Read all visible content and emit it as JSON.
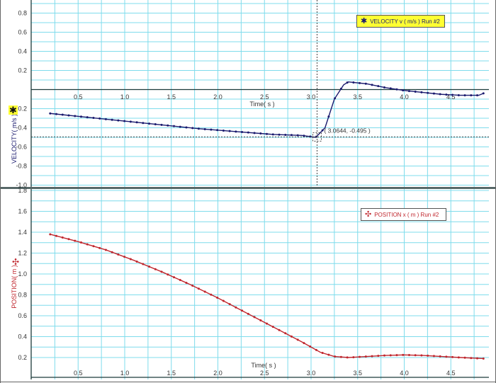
{
  "colors": {
    "velocity": "#1a1a6e",
    "position": "#c0262d",
    "grid": "#7fdcec",
    "axis": "#1c3a3a",
    "legend_highlight": "#ffff33"
  },
  "top_legend": {
    "glyph": "✱",
    "text": "VELOCITY v ( m/s ) Run #2"
  },
  "bottom_legend": {
    "glyph": "✣",
    "text": "POSITION x ( m ) Run #2"
  },
  "top_marker_glyph": "✱",
  "bottom_marker_glyph": "✣",
  "readout": "( 3.0644, -0.495 )",
  "chart_data": [
    {
      "type": "line",
      "x_axis_label": "Time( s )",
      "y_axis_label": "VELOCITY( m/s )",
      "xlim": [
        0,
        5
      ],
      "ylim": [
        -1.05,
        0.9
      ],
      "x_ticks": [
        0.5,
        1.0,
        1.5,
        2.0,
        2.5,
        3.0,
        3.5,
        4.0,
        4.5
      ],
      "x_tick_labels": [
        "0.5",
        "1.0",
        "1.5",
        "2.0",
        "2.5",
        "3.0",
        "3.5",
        "4.0",
        "4.5"
      ],
      "y_ticks": [
        0.8,
        0.6,
        0.4,
        0.2,
        -0.2,
        -0.4,
        -0.6,
        -0.8,
        -1.0
      ],
      "y_tick_labels": [
        "0.8",
        "0.6",
        "0.4",
        "0.2",
        "-0.2",
        "-0.4",
        "-0.6",
        "-0.8",
        "-1.0"
      ],
      "grid": true,
      "legend_position": "top-right",
      "cursor": {
        "x": 3.0644,
        "y": -0.495
      },
      "series": [
        {
          "name": "VELOCITY v ( m/s ) Run #2",
          "x": [
            0.2,
            0.6,
            1.0,
            1.4,
            1.8,
            2.2,
            2.6,
            2.9,
            3.05,
            3.15,
            3.25,
            3.35,
            3.4,
            3.6,
            3.8,
            4.0,
            4.2,
            4.4,
            4.6,
            4.8,
            4.85
          ],
          "y": [
            -0.25,
            -0.29,
            -0.33,
            -0.37,
            -0.41,
            -0.44,
            -0.47,
            -0.48,
            -0.5,
            -0.4,
            -0.1,
            0.05,
            0.08,
            0.06,
            0.02,
            -0.01,
            -0.03,
            -0.05,
            -0.06,
            -0.06,
            -0.04
          ]
        }
      ]
    },
    {
      "type": "line",
      "x_axis_label": "Time( s )",
      "y_axis_label": "POSITION( m )",
      "xlim": [
        0,
        5
      ],
      "ylim": [
        0.12,
        1.85
      ],
      "x_ticks": [
        0.5,
        1.0,
        1.5,
        2.0,
        2.5,
        3.0,
        3.5,
        4.0,
        4.5
      ],
      "x_tick_labels": [
        "0.5",
        "1.0",
        "1.5",
        "2.0",
        "2.5",
        "3.0",
        "3.5",
        "4.0",
        "4.5"
      ],
      "y_ticks": [
        1.8,
        1.6,
        1.4,
        1.2,
        1.0,
        0.8,
        0.6,
        0.4,
        0.2
      ],
      "y_tick_labels": [
        "1.8",
        "1.6",
        "1.4",
        "1.2",
        "1.0",
        "0.8",
        "0.6",
        "0.4",
        "0.2"
      ],
      "grid": true,
      "legend_position": "top-right",
      "series": [
        {
          "name": "POSITION x ( m ) Run #2",
          "x": [
            0.2,
            0.5,
            0.8,
            1.1,
            1.4,
            1.7,
            2.0,
            2.3,
            2.6,
            2.9,
            3.1,
            3.25,
            3.4,
            3.6,
            3.8,
            4.0,
            4.2,
            4.4,
            4.6,
            4.85
          ],
          "y": [
            1.38,
            1.31,
            1.23,
            1.13,
            1.02,
            0.9,
            0.77,
            0.63,
            0.49,
            0.35,
            0.25,
            0.21,
            0.2,
            0.21,
            0.22,
            0.225,
            0.22,
            0.21,
            0.2,
            0.19
          ]
        }
      ]
    }
  ]
}
